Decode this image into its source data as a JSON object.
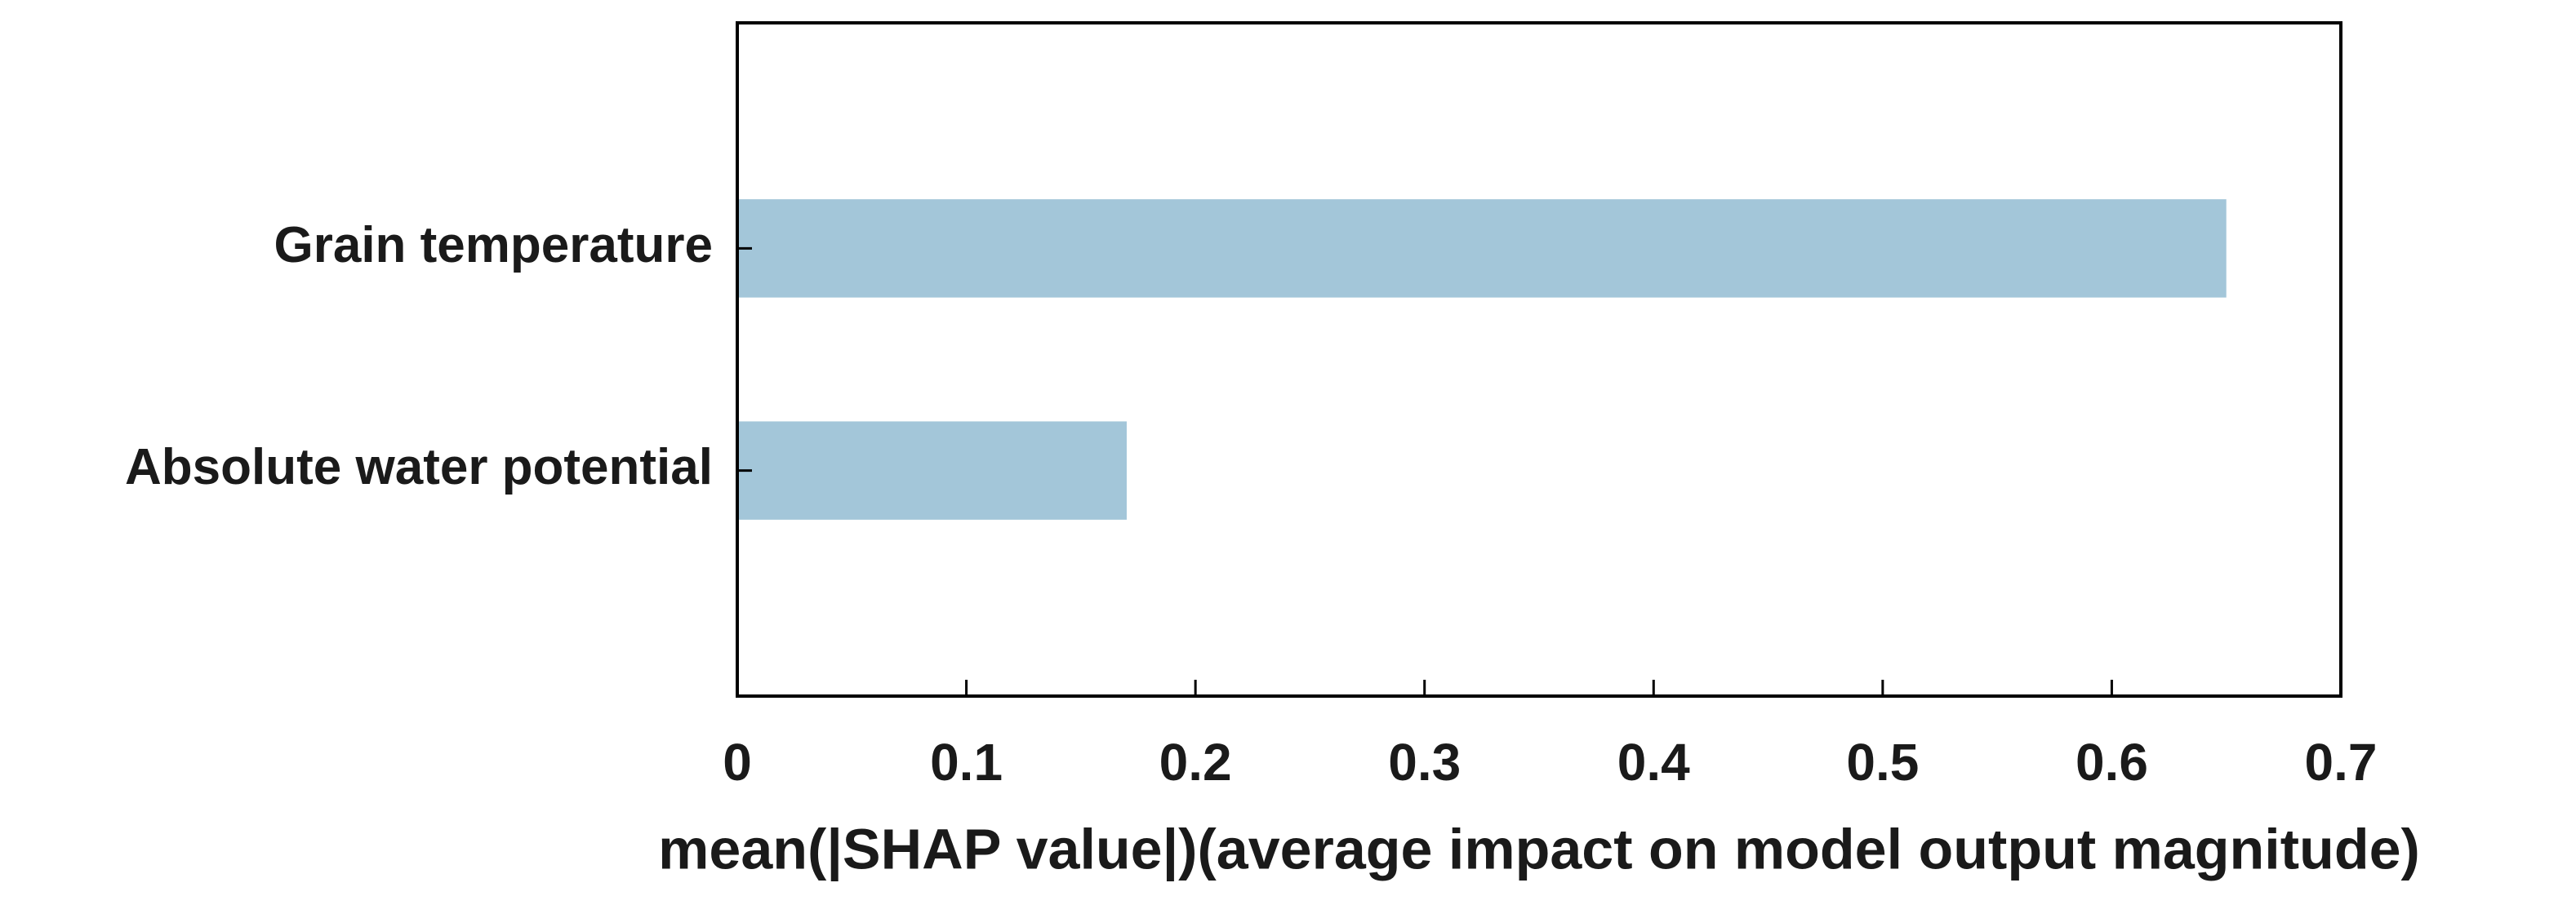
{
  "chart_data": {
    "type": "barh",
    "categories": [
      "Grain temperature",
      "Absolute water potential"
    ],
    "values": [
      0.65,
      0.17
    ],
    "color": "#a3c6d9",
    "xlabel": "mean(|SHAP value|)(average impact on model output magnitude)",
    "xlim": [
      0,
      0.7
    ],
    "xticks": [
      0,
      0.1,
      0.2,
      0.3,
      0.4,
      0.5,
      0.6,
      0.7
    ],
    "grid": false
  }
}
